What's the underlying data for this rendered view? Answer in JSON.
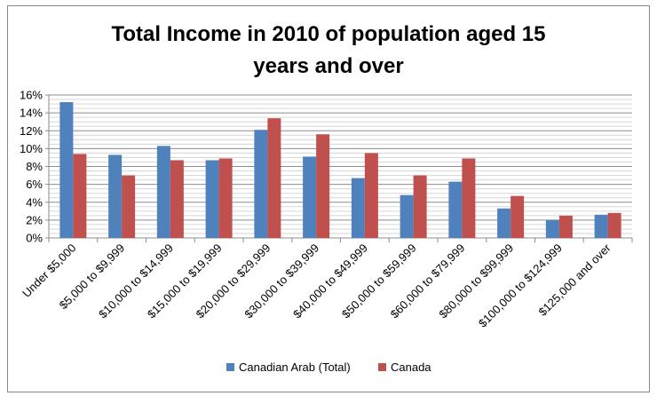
{
  "chart_data": {
    "type": "bar",
    "title_lines": [
      "Total Income in 2010 of population aged 15",
      "years and over"
    ],
    "categories": [
      "Under $5,000",
      "$5,000 to $9,999",
      "$10,000 to $14,999",
      "$15,000 to $19,999",
      "$20,000 to $29,999",
      "$30,000 to $39,999",
      "$40,000 to $49,999",
      "$50,000 to $59,999",
      "$60,000 to $79,999",
      "$80,000 to $99,999",
      "$100,000 to $124,999",
      "$125,000 and over"
    ],
    "series": [
      {
        "name": "Canadian Arab (Total)",
        "color": "#4F81BD",
        "values": [
          15.2,
          9.3,
          10.3,
          8.7,
          12.1,
          9.1,
          6.7,
          4.8,
          6.3,
          3.3,
          2.0,
          2.6
        ]
      },
      {
        "name": "Canada",
        "color": "#C0504D",
        "values": [
          9.4,
          7.0,
          8.7,
          8.9,
          13.4,
          11.6,
          9.5,
          7.0,
          8.9,
          4.7,
          2.5,
          2.8
        ]
      }
    ],
    "ylim": [
      0,
      16
    ],
    "yticks": [
      0,
      2,
      4,
      6,
      8,
      10,
      12,
      14,
      16
    ],
    "ytick_format": "percent",
    "xlabel": "",
    "ylabel": "",
    "grid": true,
    "legend_position": "bottom"
  }
}
